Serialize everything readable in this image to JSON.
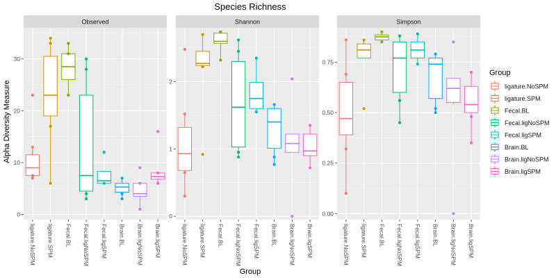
{
  "chart_data": {
    "type": "boxplot",
    "title": "Species Richness",
    "xlabel": "Group",
    "ylabel": "Alpha Diversity Measure",
    "categories": [
      "ligature.NoSPM",
      "ligature.SPM",
      "Fecal.BL",
      "Fecal.ligNoSPM",
      "Fecal.ligSPM",
      "Brain.BL",
      "Brain.ligNoSPM",
      "Brain.ligSPM"
    ],
    "colors": [
      "#F8766D",
      "#CD9600",
      "#7CAE00",
      "#00BE67",
      "#00BFC4",
      "#00A9FF",
      "#C77CFF",
      "#FF61CC"
    ],
    "legend": {
      "title": "Group",
      "position": "right",
      "items": [
        "ligature.NoSPM",
        "ligature.SPM",
        "Fecal.BL",
        "Fecal.ligNoSPM",
        "Fecal.ligSPM",
        "Brain.BL",
        "Brain.ligNoSPM",
        "Brain.ligSPM"
      ]
    },
    "panels": [
      {
        "name": "Observed",
        "ylim": [
          -1,
          36
        ],
        "yticks": [
          0,
          10,
          20,
          30
        ],
        "boxes": [
          {
            "q1": 7.5,
            "median": 9,
            "q3": 11.5,
            "lower": 7,
            "upper": 13,
            "points": [
              23,
              13,
              7,
              7.5
            ]
          },
          {
            "q1": 19,
            "median": 23,
            "q3": 30.5,
            "lower": 6,
            "upper": 34,
            "points": [
              34,
              33,
              17,
              6
            ]
          },
          {
            "q1": 26,
            "median": 28.5,
            "q3": 31,
            "lower": 23,
            "upper": 33,
            "points": [
              33,
              23,
              31
            ]
          },
          {
            "q1": 4.5,
            "median": 7.5,
            "q3": 23,
            "lower": 3,
            "upper": 30,
            "points": [
              30,
              28,
              4,
              3
            ]
          },
          {
            "q1": 6,
            "median": 6.5,
            "q3": 8.3,
            "lower": 6,
            "upper": 8.3,
            "points": [
              12,
              6
            ]
          },
          {
            "q1": 4.3,
            "median": 5.3,
            "q3": 6,
            "lower": 3,
            "upper": 7,
            "points": [
              7,
              4,
              3
            ]
          },
          {
            "q1": 3.5,
            "median": 4,
            "q3": 6,
            "lower": 1,
            "upper": 6,
            "points": [
              9,
              6,
              1
            ]
          },
          {
            "q1": 6.8,
            "median": 7.3,
            "q3": 8,
            "lower": 6,
            "upper": 8,
            "points": [
              16,
              8,
              6
            ]
          }
        ]
      },
      {
        "name": "Shannon",
        "ylim": [
          -0.05,
          2.8
        ],
        "yticks": [
          0,
          1,
          2
        ],
        "boxes": [
          {
            "q1": 0.68,
            "median": 0.93,
            "q3": 1.32,
            "lower": 0.3,
            "upper": 1.52,
            "points": [
              2.48,
              1.52,
              0.3,
              0.65
            ]
          },
          {
            "q1": 2.24,
            "median": 2.27,
            "q3": 2.45,
            "lower": 2.22,
            "upper": 2.7,
            "points": [
              2.7,
              0.92,
              2.22
            ]
          },
          {
            "q1": 2.57,
            "median": 2.6,
            "q3": 2.72,
            "lower": 2.32,
            "upper": 2.74,
            "points": [
              2.74,
              2.32
            ]
          },
          {
            "q1": 1.03,
            "median": 1.62,
            "q3": 2.3,
            "lower": 0.88,
            "upper": 2.62,
            "points": [
              2.62,
              2.45,
              0.95,
              0.88
            ]
          },
          {
            "q1": 1.6,
            "median": 1.75,
            "q3": 1.99,
            "lower": 1.55,
            "upper": 2.35,
            "points": [
              2.35,
              1.55
            ]
          },
          {
            "q1": 1.01,
            "median": 1.4,
            "q3": 1.6,
            "lower": 0.77,
            "upper": 1.66,
            "points": [
              1.66,
              0.88,
              0.77
            ]
          },
          {
            "q1": 0.95,
            "median": 1.08,
            "q3": 1.22,
            "lower": 0.95,
            "upper": 1.22,
            "points": [
              2.04,
              0
            ]
          },
          {
            "q1": 0.9,
            "median": 0.97,
            "q3": 1.22,
            "lower": 0.72,
            "upper": 1.35,
            "points": [
              1.35,
              0.72
            ]
          }
        ]
      },
      {
        "name": "Simpson",
        "ylim": [
          -0.03,
          0.92
        ],
        "yticks": [
          0.0,
          0.25,
          0.5,
          0.75
        ],
        "ytick_labels": [
          "0.00",
          "0.25",
          "0.50",
          "0.75"
        ],
        "boxes": [
          {
            "q1": 0.39,
            "median": 0.47,
            "q3": 0.65,
            "lower": 0.1,
            "upper": 0.86,
            "points": [
              0.86,
              0.69,
              0.32,
              0.1
            ]
          },
          {
            "q1": 0.77,
            "median": 0.81,
            "q3": 0.84,
            "lower": 0.77,
            "upper": 0.86,
            "points": [
              0.86,
              0.52
            ]
          },
          {
            "q1": 0.86,
            "median": 0.875,
            "q3": 0.885,
            "lower": 0.85,
            "upper": 0.9,
            "points": [
              0.9,
              0.85
            ]
          },
          {
            "q1": 0.6,
            "median": 0.77,
            "q3": 0.85,
            "lower": 0.45,
            "upper": 0.88,
            "points": [
              0.88,
              0.56,
              0.45
            ]
          },
          {
            "q1": 0.77,
            "median": 0.81,
            "q3": 0.85,
            "lower": 0.74,
            "upper": 0.89,
            "points": [
              0.89,
              0.74
            ]
          },
          {
            "q1": 0.57,
            "median": 0.74,
            "q3": 0.77,
            "lower": 0.5,
            "upper": 0.79,
            "points": [
              0.79,
              0.52,
              0.5
            ]
          },
          {
            "q1": 0.55,
            "median": 0.62,
            "q3": 0.67,
            "lower": 0.54,
            "upper": 0.67,
            "points": [
              0.85,
              0
            ]
          },
          {
            "q1": 0.5,
            "median": 0.54,
            "q3": 0.63,
            "lower": 0.35,
            "upper": 0.7,
            "points": [
              0.7,
              0.48,
              0.35
            ]
          }
        ]
      }
    ],
    "grid": true
  }
}
